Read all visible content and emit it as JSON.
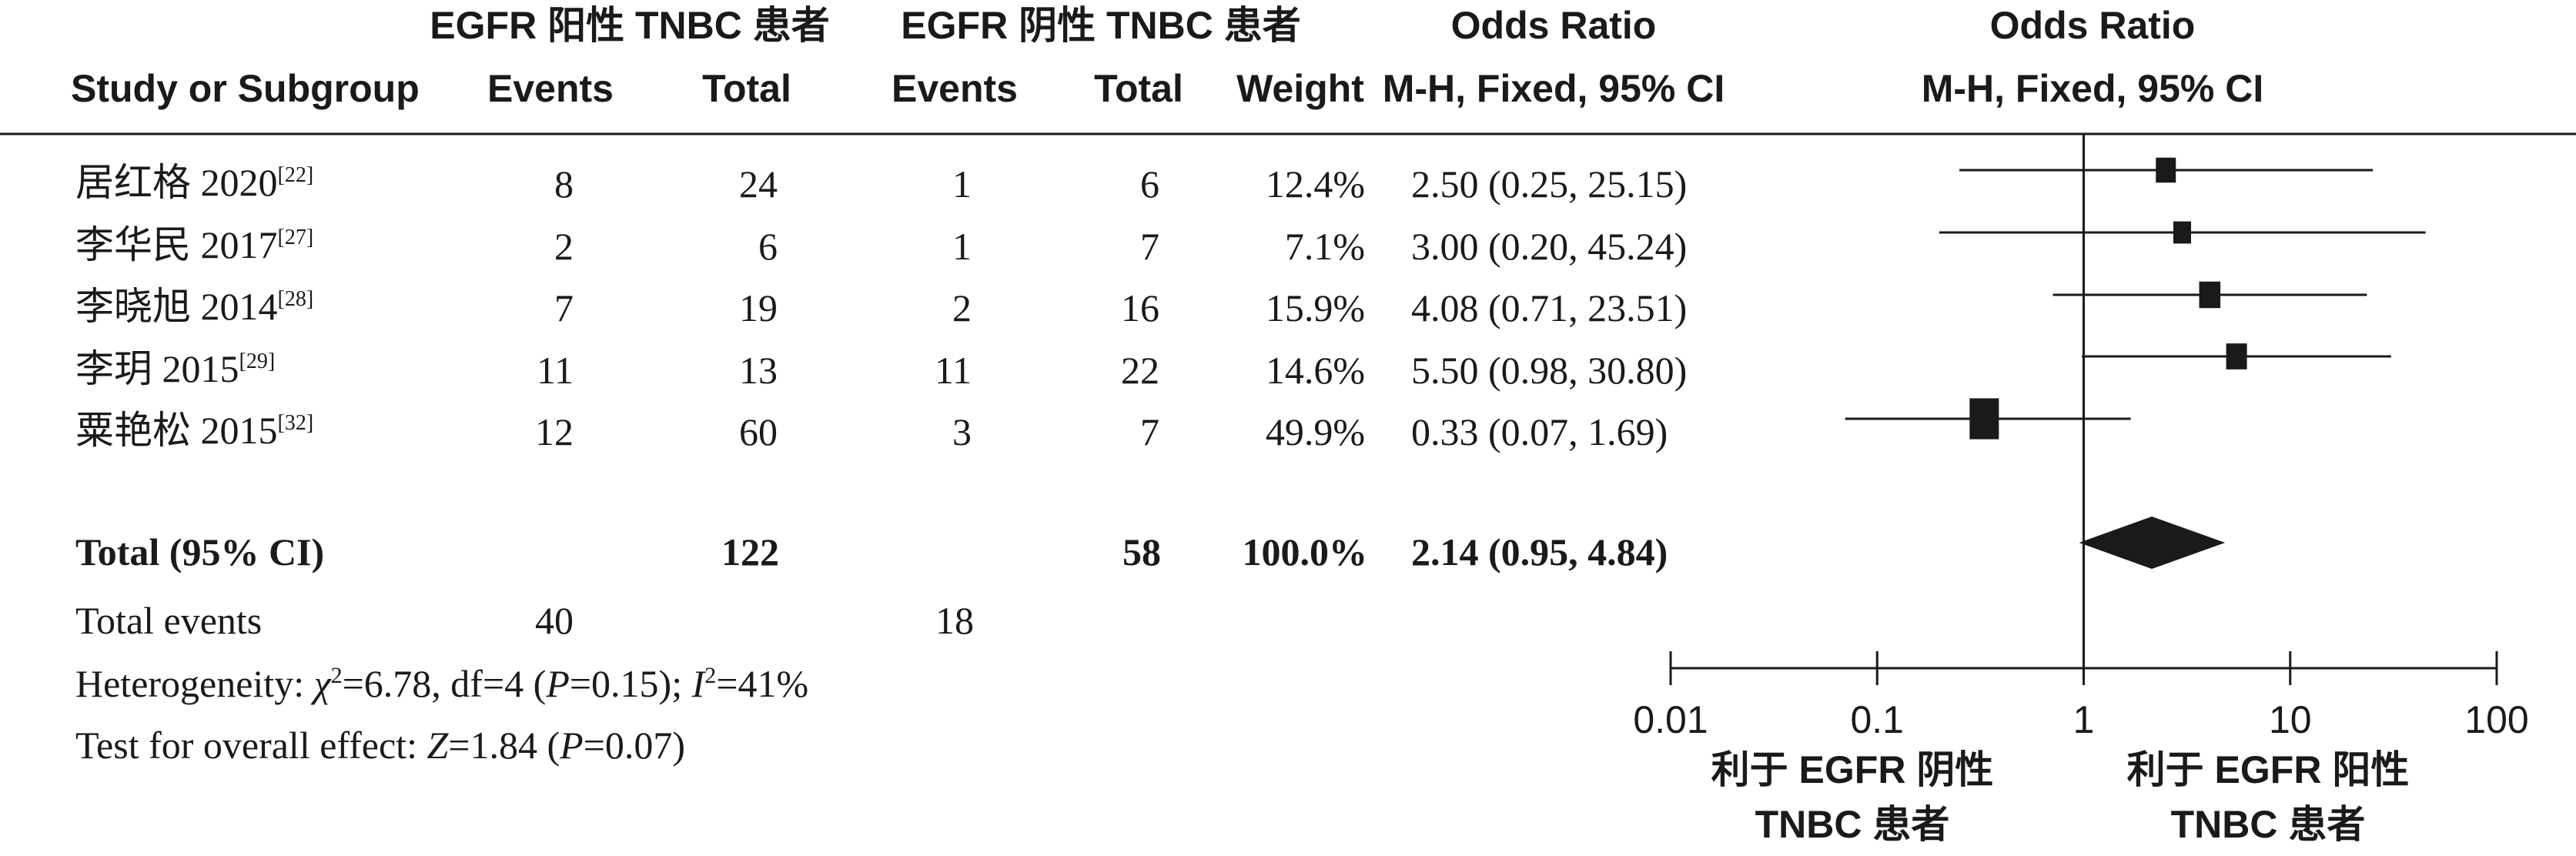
{
  "headers": {
    "study": "Study or Subgroup",
    "group1": "EGFR 阳性 TNBC 患者",
    "group2": "EGFR 阴性 TNBC 患者",
    "events": "Events",
    "total": "Total",
    "weight": "Weight",
    "or_title": "Odds Ratio",
    "or_method": "M-H, Fixed, 95% CI",
    "plot_title": "Odds Ratio",
    "plot_method": "M-H, Fixed, 95% CI"
  },
  "studies": [
    {
      "name": "居红格 2020",
      "ref": "[22]",
      "e1": "8",
      "t1": "24",
      "e2": "1",
      "t2": "6",
      "weight": "12.4%",
      "ci_text": "2.50 (0.25, 25.15)"
    },
    {
      "name": "李华民 2017",
      "ref": "[27]",
      "e1": "2",
      "t1": "6",
      "e2": "1",
      "t2": "7",
      "weight": "7.1%",
      "ci_text": "3.00 (0.20, 45.24)"
    },
    {
      "name": "李晓旭 2014",
      "ref": "[28]",
      "e1": "7",
      "t1": "19",
      "e2": "2",
      "t2": "16",
      "weight": "15.9%",
      "ci_text": "4.08 (0.71, 23.51)"
    },
    {
      "name": "李玥 2015",
      "ref": "[29]",
      "e1": "11",
      "t1": "13",
      "e2": "11",
      "t2": "22",
      "weight": "14.6%",
      "ci_text": "5.50 (0.98, 30.80)"
    },
    {
      "name": "粟艳松 2015",
      "ref": "[32]",
      "e1": "12",
      "t1": "60",
      "e2": "3",
      "t2": "7",
      "weight": "49.9%",
      "ci_text": "0.33 (0.07, 1.69)"
    }
  ],
  "total_row": {
    "label": "Total (95% CI)",
    "t1": "122",
    "t2": "58",
    "weight": "100.0%",
    "ci_text": "2.14 (0.95, 4.84)"
  },
  "events_row": {
    "label": "Total events",
    "e1": "40",
    "e2": "18"
  },
  "heterogeneity": {
    "prefix": "Heterogeneity: ",
    "chi_sym": "χ",
    "sup2": "2",
    "chi_val": "=6.78, df=4 (",
    "p_sym": "P",
    "p_val": "=0.15); ",
    "i_sym": "I",
    "i_val": "=41%"
  },
  "overall_effect": {
    "prefix": "Test for overall effect: ",
    "z_sym": "Z",
    "z_val": "=1.84 (",
    "p_sym": "P",
    "p_val": "=0.07)"
  },
  "chart_data": {
    "type": "forest",
    "x_scale": "log",
    "xlim": [
      0.01,
      100
    ],
    "ticks": [
      "0.01",
      "0.1",
      "1",
      "10",
      "100"
    ],
    "tick_values": [
      0.01,
      0.1,
      1,
      10,
      100
    ],
    "reference_line": 1,
    "studies": [
      {
        "or": 2.5,
        "lo": 0.25,
        "hi": 25.15,
        "weight": 12.4
      },
      {
        "or": 3.0,
        "lo": 0.2,
        "hi": 45.24,
        "weight": 7.1
      },
      {
        "or": 4.08,
        "lo": 0.71,
        "hi": 23.51,
        "weight": 15.9
      },
      {
        "or": 5.5,
        "lo": 0.98,
        "hi": 30.8,
        "weight": 14.6
      },
      {
        "or": 0.33,
        "lo": 0.07,
        "hi": 1.69,
        "weight": 49.9
      }
    ],
    "pooled": {
      "or": 2.14,
      "lo": 0.95,
      "hi": 4.84
    },
    "favours_left": [
      "利于 EGFR 阴性",
      "TNBC 患者"
    ],
    "favours_right": [
      "利于 EGFR 阳性",
      "TNBC 患者"
    ],
    "marker_color": "#1a1a1a"
  }
}
